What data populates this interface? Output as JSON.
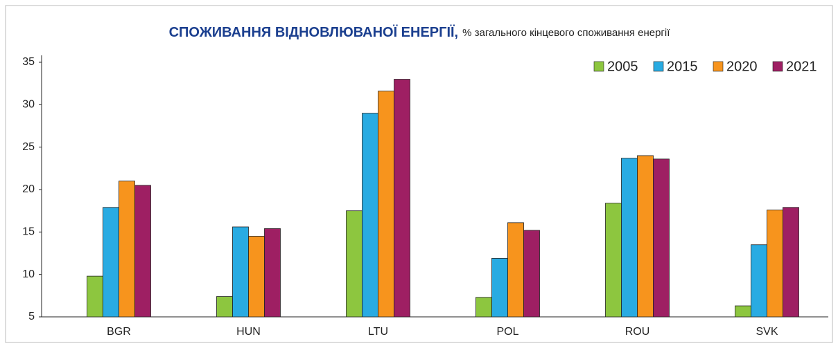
{
  "chart_data": {
    "type": "bar",
    "title": "СПОЖИВАННЯ ВІДНОВЛЮВАНОЇ ЕНЕРГІЇ,",
    "subtitle": "% загального кінцевого споживання енергії",
    "categories": [
      "BGR",
      "HUN",
      "LTU",
      "POL",
      "ROU",
      "SVK"
    ],
    "series": [
      {
        "name": "2005",
        "color": "#8dc63f",
        "values": [
          9.8,
          7.4,
          17.5,
          7.3,
          18.4,
          6.3
        ]
      },
      {
        "name": "2015",
        "color": "#29abe2",
        "values": [
          17.9,
          15.6,
          29.0,
          11.9,
          23.7,
          13.5
        ]
      },
      {
        "name": "2020",
        "color": "#f7941d",
        "values": [
          21.0,
          14.5,
          31.6,
          16.1,
          24.0,
          17.6
        ]
      },
      {
        "name": "2021",
        "color": "#9e1f63",
        "values": [
          20.5,
          15.4,
          33.0,
          15.2,
          23.6,
          17.9
        ]
      }
    ],
    "ylim": [
      5,
      35
    ],
    "yticks": [
      5,
      10,
      15,
      20,
      25,
      30,
      35
    ],
    "grid": false,
    "legend": "top-right"
  }
}
